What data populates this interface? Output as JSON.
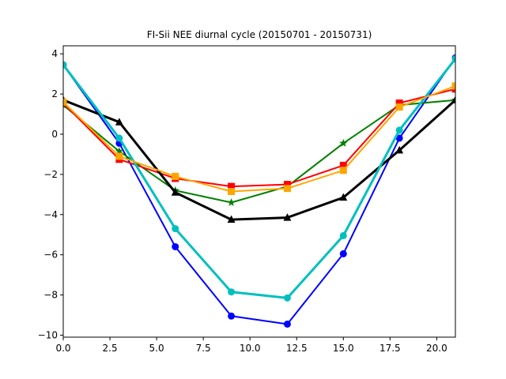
{
  "chart_data": {
    "type": "line",
    "title": "FI-Sii NEE diurnal cycle (20150701 - 20150731)",
    "xlabel": "",
    "ylabel": "",
    "xlim": [
      0,
      21
    ],
    "ylim": [
      -10.1,
      4.4
    ],
    "grid": false,
    "x": [
      0,
      3,
      6,
      9,
      12,
      15,
      18,
      21
    ],
    "xticks": [
      "0.0",
      "2.5",
      "5.0",
      "7.5",
      "10.0",
      "12.5",
      "15.0",
      "17.5",
      "20.0"
    ],
    "xtick_values": [
      0,
      2.5,
      5,
      7.5,
      10,
      12.5,
      15,
      17.5,
      20
    ],
    "yticks": [
      "−10",
      "−8",
      "−6",
      "−4",
      "−2",
      "0",
      "2",
      "4"
    ],
    "ytick_values": [
      -10,
      -8,
      -6,
      -4,
      -2,
      0,
      2,
      4
    ],
    "series": [
      {
        "color": "#0000ff",
        "marker": "circle",
        "linewidth": 2,
        "values": [
          3.45,
          -0.45,
          -5.6,
          -9.05,
          -9.45,
          -5.95,
          -0.2,
          3.8
        ]
      },
      {
        "color": "#008000",
        "marker": "star",
        "linewidth": 2,
        "values": [
          1.45,
          -0.85,
          -2.8,
          -3.4,
          -2.6,
          -0.45,
          1.45,
          1.7
        ]
      },
      {
        "color": "#ff0000",
        "marker": "square",
        "linewidth": 2,
        "values": [
          1.55,
          -1.25,
          -2.2,
          -2.6,
          -2.5,
          -1.55,
          1.55,
          2.25
        ]
      },
      {
        "color": "#000000",
        "marker": "triangle",
        "linewidth": 3,
        "values": [
          1.7,
          0.6,
          -2.9,
          -4.25,
          -4.15,
          -3.15,
          -0.8,
          1.7
        ]
      },
      {
        "color": "#00bfbf",
        "marker": "circle",
        "linewidth": 3,
        "values": [
          3.45,
          -0.2,
          -4.7,
          -7.85,
          -8.15,
          -5.05,
          0.2,
          3.75
        ]
      },
      {
        "color": "#ffa500",
        "marker": "square",
        "linewidth": 2,
        "values": [
          1.6,
          -1.1,
          -2.1,
          -2.85,
          -2.7,
          -1.8,
          1.35,
          2.4
        ]
      }
    ]
  }
}
